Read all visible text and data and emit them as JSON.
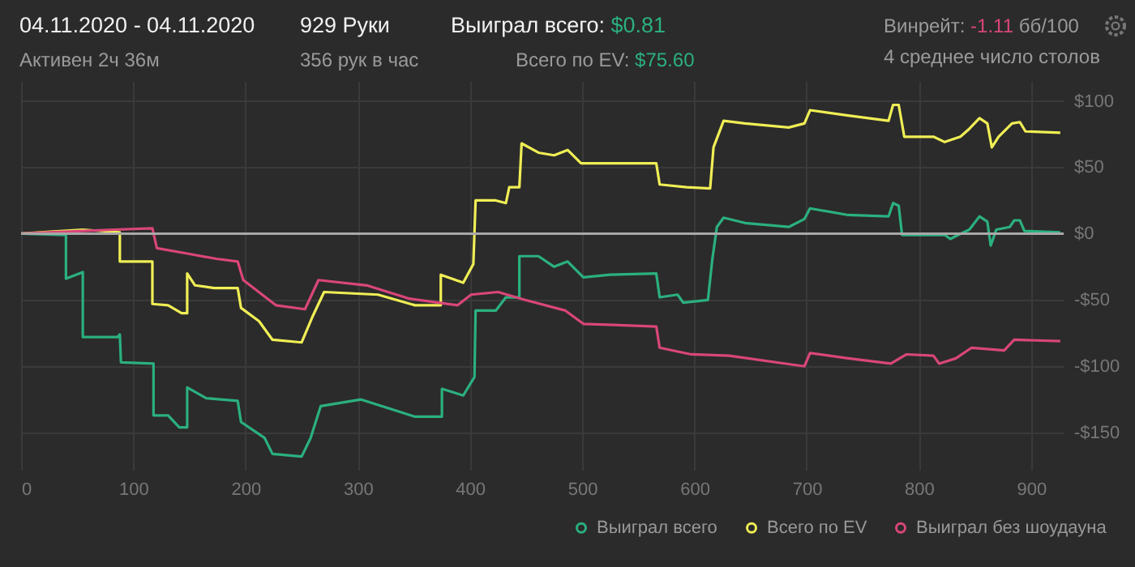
{
  "chart_data": {
    "type": "line",
    "title": "04.11.2020 - 04.11.2020",
    "subtitle": "Активен 2ч 36м",
    "annotations": [
      "929 Руки",
      "356 рук в час",
      "Выиграл всего:",
      "$0.81",
      "Всего по EV:",
      "$75.60",
      "Винрейт:",
      "-1.11",
      "бб/100",
      "4 среднее число столов"
    ],
    "series": [
      {
        "name": "Выиграл всего",
        "color": "#2bb07f",
        "x": [
          0,
          40,
          40,
          55,
          55,
          86,
          88,
          89,
          118,
          118,
          131,
          141,
          148,
          148,
          165,
          193,
          196,
          217,
          224,
          250,
          258,
          267,
          303,
          351,
          375,
          375,
          394,
          404,
          405,
          423,
          432,
          444,
          444,
          461,
          475,
          487,
          501,
          525,
          566,
          569,
          585,
          590,
          612,
          616,
          620,
          626,
          645,
          684,
          698,
          703,
          737,
          773,
          777,
          782,
          785,
          823,
          828,
          835,
          845,
          854,
          861,
          864,
          869,
          881,
          885,
          890,
          894,
          926
        ],
        "values": [
          0,
          -1,
          -34,
          -29,
          -78,
          -78,
          -76,
          -97,
          -98,
          -137,
          -137,
          -146,
          -146,
          -116,
          -124,
          -126,
          -142,
          -154,
          -166,
          -168,
          -154,
          -130,
          -125,
          -138,
          -138,
          -117,
          -122,
          -108,
          -58,
          -58,
          -48,
          -48,
          -17,
          -17,
          -25,
          -21,
          -33,
          -31,
          -30,
          -48,
          -46,
          -52,
          -50,
          -19,
          5,
          12,
          8,
          5,
          11,
          19,
          14,
          13,
          23,
          21,
          -1,
          -1,
          -4,
          -1,
          3,
          13,
          9,
          -9,
          3,
          5,
          10,
          10,
          2,
          1
        ]
      },
      {
        "name": "Всего по EV",
        "color": "#f0ee55",
        "x": [
          0,
          55,
          88,
          88,
          117,
          117,
          131,
          143,
          148,
          148,
          155,
          172,
          193,
          196,
          212,
          224,
          250,
          260,
          270,
          318,
          351,
          374,
          374,
          394,
          403,
          405,
          423,
          432,
          435,
          444,
          446,
          461,
          475,
          487,
          499,
          525,
          566,
          569,
          593,
          614,
          617,
          626,
          645,
          684,
          698,
          703,
          737,
          773,
          777,
          782,
          787,
          813,
          823,
          837,
          845,
          854,
          861,
          865,
          871,
          883,
          890,
          895,
          926
        ],
        "values": [
          0,
          3,
          1,
          -21,
          -21,
          -53,
          -54,
          -60,
          -60,
          -30,
          -39,
          -41,
          -41,
          -56,
          -66,
          -80,
          -82,
          -62,
          -44,
          -46,
          -54,
          -54,
          -31,
          -37,
          -23,
          25,
          25,
          23,
          35,
          35,
          68,
          61,
          59,
          63,
          53,
          53,
          53,
          37,
          35,
          34,
          65,
          85,
          83,
          80,
          83,
          93,
          89,
          85,
          97,
          97,
          73,
          73,
          69,
          73,
          79,
          87,
          83,
          65,
          73,
          83,
          84,
          77,
          76
        ]
      },
      {
        "name": "Выиграл без шоудауна",
        "color": "#d9467a",
        "x": [
          0,
          55,
          83,
          117,
          121,
          148,
          174,
          193,
          198,
          227,
          253,
          265,
          308,
          346,
          389,
          401,
          425,
          449,
          485,
          501,
          566,
          569,
          597,
          631,
          698,
          703,
          737,
          775,
          789,
          813,
          818,
          833,
          847,
          876,
          885,
          926
        ],
        "values": [
          0,
          2,
          3,
          4,
          -11,
          -15,
          -19,
          -21,
          -35,
          -54,
          -57,
          -35,
          -39,
          -49,
          -54,
          -46,
          -44,
          -50,
          -58,
          -68,
          -70,
          -86,
          -91,
          -92,
          -100,
          -90,
          -94,
          -98,
          -91,
          -92,
          -98,
          -94,
          -86,
          -88,
          -80,
          -81
        ]
      }
    ],
    "xlim": [
      0,
      929
    ],
    "xticks": [
      0,
      100,
      200,
      300,
      400,
      500,
      600,
      700,
      800,
      900
    ],
    "ylim": [
      -178,
      115
    ],
    "yticks": [
      {
        "value": -150,
        "label": "-$150"
      },
      {
        "value": -100,
        "label": "-$100"
      },
      {
        "value": -50,
        "label": "-$50"
      },
      {
        "value": 0,
        "label": "$0"
      },
      {
        "value": 50,
        "label": "$50"
      },
      {
        "value": 100,
        "label": "$100"
      }
    ],
    "ref_lines": [
      {
        "axis": "y",
        "value": 0,
        "color": "#a8a8a8"
      }
    ],
    "grid": true,
    "legend": "bottom right",
    "marker": "none",
    "line_style": "solid"
  }
}
